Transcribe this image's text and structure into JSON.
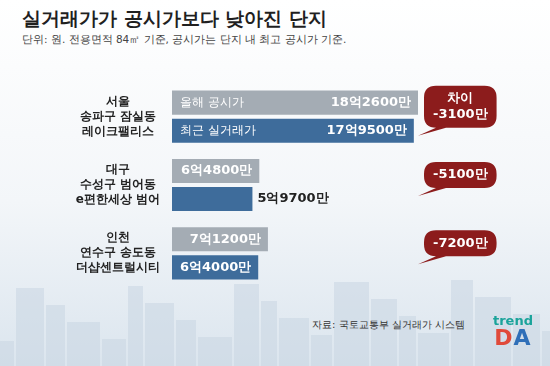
{
  "chart_data": {
    "type": "bar",
    "orientation": "horizontal",
    "title": "실거래가가 공시가보다 낮아진 단지",
    "subtitle": "단위: 원. 전용면적 84㎡ 기준, 공시가는 단지 내 최고 공시가 기준.",
    "categories": [
      "서울\n송파구 잠실동\n레이크팰리스",
      "대구\n수성구 범어동\ne편한세상 범어",
      "인천\n연수구 송도동\n더샵센트럴시티"
    ],
    "series": [
      {
        "name": "올해 공시가",
        "color": "#a4acb4",
        "values": [
          1826000000,
          648000000,
          712000000
        ],
        "value_labels": [
          "18억2600만",
          "6억4800만",
          "7억1200만"
        ]
      },
      {
        "name": "최근 실거래가",
        "color": "#3e6c9b",
        "values": [
          1795000000,
          597000000,
          640000000
        ],
        "value_labels": [
          "17억9500만",
          "5억9700만",
          "6억4000만"
        ]
      }
    ],
    "annotations": [
      "차이\n-3100만",
      "-5100만",
      "-7200만"
    ],
    "annotation_color": "#8c1c1c",
    "xlim": [
      0,
      1826000000
    ],
    "data_labels": true,
    "grid": false,
    "tick_labels": "y",
    "source": "자료: 국토교통부 실거래가 시스템",
    "logo": {
      "line1": "trend",
      "line2": "DA"
    }
  }
}
